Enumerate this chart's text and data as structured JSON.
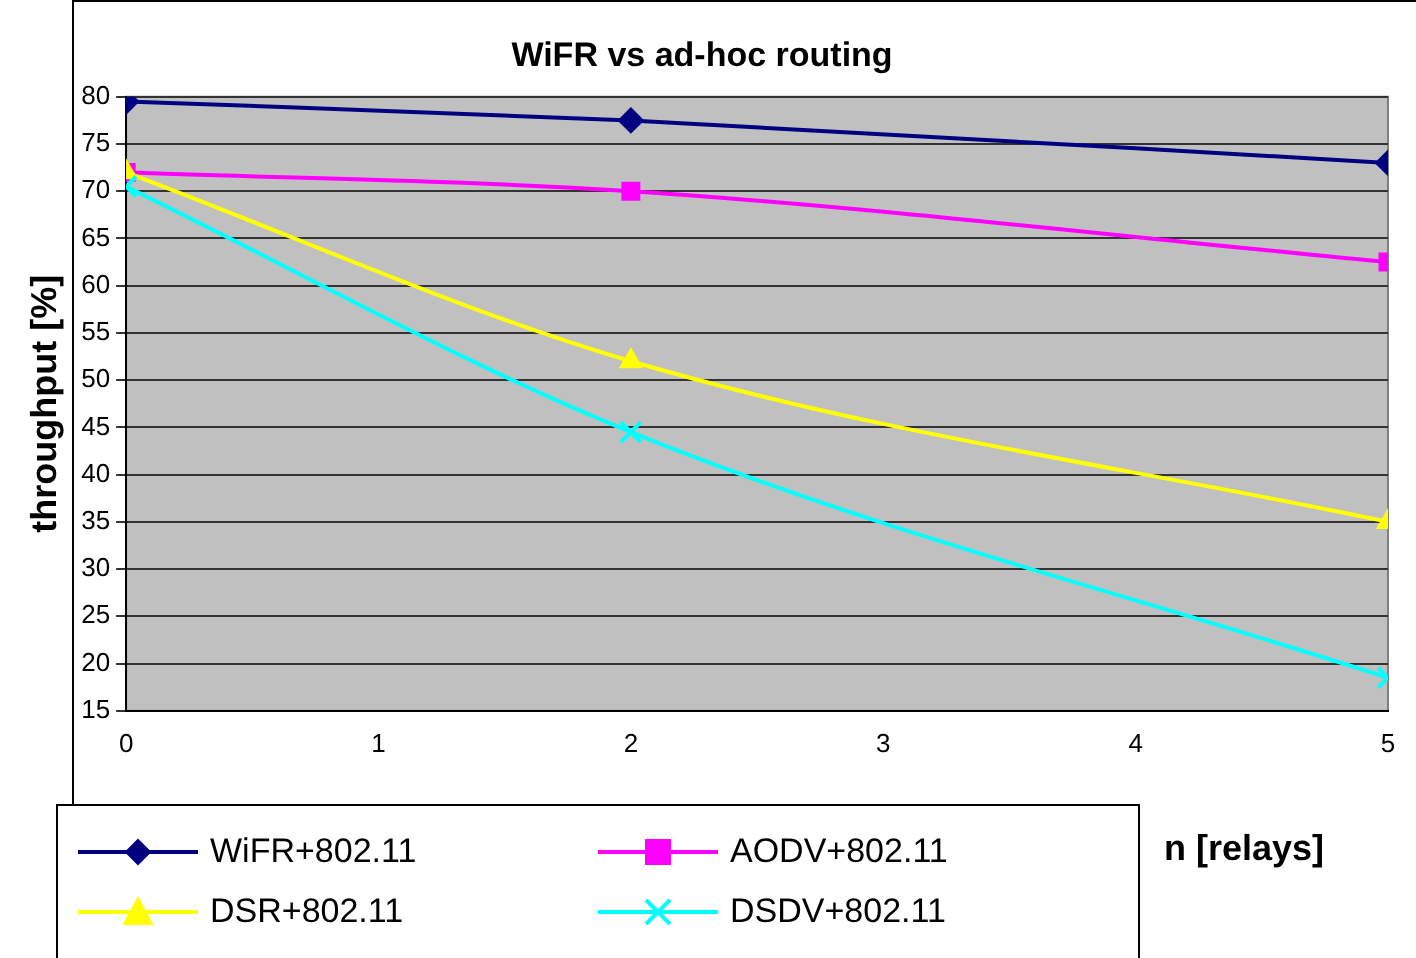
{
  "chart_data": {
    "type": "line",
    "title": "WiFR vs ad-hoc routing",
    "xlabel": "n [relays]",
    "ylabel": "throughput [%]",
    "x": [
      0,
      2,
      5
    ],
    "series": [
      {
        "name": "WiFR+802.11",
        "color": "#000080",
        "values": [
          79.5,
          77.5,
          73
        ],
        "marker": "diamond"
      },
      {
        "name": "AODV+802.11",
        "color": "#ff00ff",
        "values": [
          72,
          70,
          62.5
        ],
        "marker": "square"
      },
      {
        "name": "DSR+802.11",
        "color": "#ffff00",
        "values": [
          72,
          52,
          35
        ],
        "marker": "triangle"
      },
      {
        "name": "DSDV+802.11",
        "color": "#00ffff",
        "values": [
          70.5,
          44.5,
          18.5
        ],
        "marker": "cross"
      }
    ],
    "xlim": [
      0,
      5
    ],
    "xticks": [
      0,
      1,
      2,
      3,
      4,
      5
    ],
    "ylim": [
      15,
      80
    ],
    "yticks": [
      15,
      20,
      25,
      30,
      35,
      40,
      45,
      50,
      55,
      60,
      65,
      70,
      75,
      80
    ],
    "grid": "y",
    "legend": "bottom",
    "line_style": "solid"
  }
}
